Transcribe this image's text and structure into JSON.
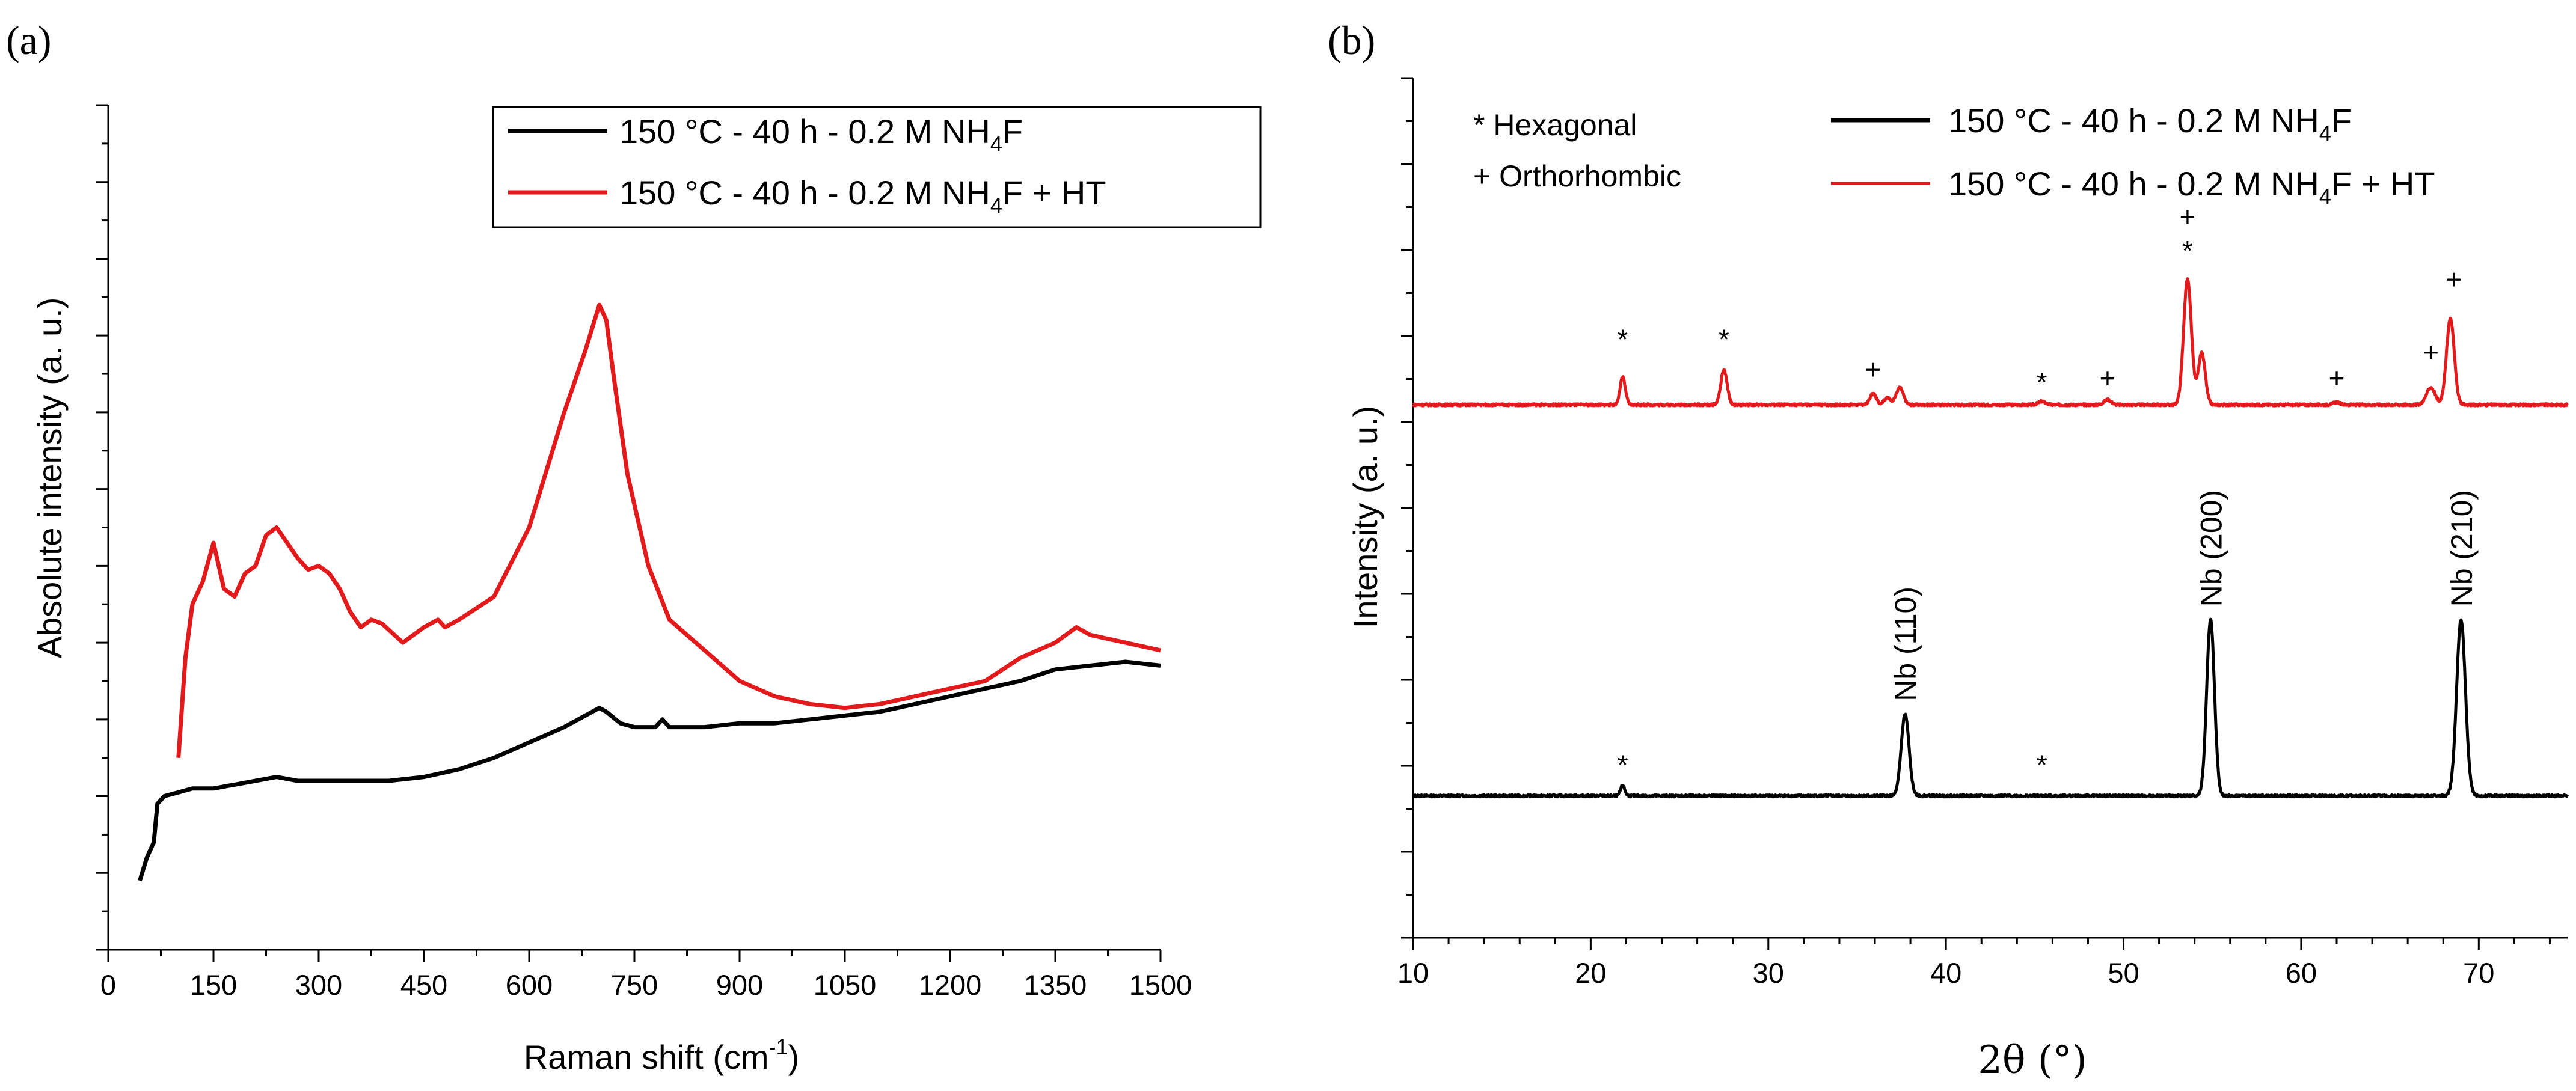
{
  "chart_data": [
    {
      "type": "line",
      "panel": "(a)",
      "xlabel": "Raman shift (cm",
      "xlabel_sup": "-1",
      "xlabel_tail": ")",
      "ylabel": "Absolute intensity (a. u.)",
      "xlim": [
        0,
        1500
      ],
      "ylim": [
        0,
        110
      ],
      "xticks": [
        0,
        150,
        300,
        450,
        600,
        750,
        900,
        1050,
        1200,
        1350,
        1500
      ],
      "yticks_unlabeled": true,
      "legend": [
        {
          "name_pre": "150 °C - 40 h - 0.2 M NH",
          "name_sub": "4",
          "name_post": "F",
          "color": "#000000"
        },
        {
          "name_pre": "150 °C - 40 h - 0.2 M NH",
          "name_sub": "4",
          "name_post": "F + HT",
          "color": "#e31a1c"
        }
      ],
      "series": [
        {
          "name": "150 °C - 40 h - 0.2 M NH4F",
          "color": "#000000",
          "x": [
            45,
            55,
            65,
            70,
            80,
            100,
            120,
            150,
            180,
            210,
            240,
            270,
            300,
            350,
            400,
            450,
            500,
            550,
            600,
            650,
            680,
            700,
            710,
            730,
            750,
            780,
            790,
            800,
            850,
            900,
            950,
            1000,
            1050,
            1100,
            1150,
            1200,
            1250,
            1300,
            1350,
            1400,
            1450,
            1500
          ],
          "y": [
            9,
            12,
            14,
            19,
            20,
            20.5,
            21,
            21,
            21.5,
            22,
            22.5,
            22,
            22,
            22,
            22,
            22.5,
            23.5,
            25,
            27,
            29,
            30.5,
            31.5,
            31,
            29.5,
            29,
            29,
            30,
            29,
            29,
            29.5,
            29.5,
            30,
            30.5,
            31,
            32,
            33,
            34,
            35,
            36.5,
            37,
            37.5,
            37
          ]
        },
        {
          "name": "150 °C - 40 h - 0.2 M NH4F + HT",
          "color": "#e31a1c",
          "x": [
            100,
            110,
            120,
            135,
            150,
            165,
            180,
            195,
            210,
            225,
            240,
            255,
            270,
            285,
            300,
            315,
            330,
            345,
            360,
            375,
            390,
            420,
            450,
            470,
            480,
            500,
            550,
            600,
            650,
            680,
            700,
            710,
            720,
            740,
            770,
            800,
            850,
            900,
            950,
            1000,
            1050,
            1100,
            1150,
            1200,
            1250,
            1300,
            1350,
            1380,
            1400,
            1450,
            1500
          ],
          "y": [
            25,
            38,
            45,
            48,
            53,
            47,
            46,
            49,
            50,
            54,
            55,
            53,
            51,
            49.5,
            50,
            49,
            47,
            44,
            42,
            43,
            42.5,
            40,
            42,
            43,
            42,
            43,
            46,
            55,
            70,
            78,
            84,
            82,
            75,
            62,
            50,
            43,
            39,
            35,
            33,
            32,
            31.5,
            32,
            33,
            34,
            35,
            38,
            40,
            42,
            41,
            40,
            39
          ]
        }
      ]
    },
    {
      "type": "line",
      "panel": "(b)",
      "xlabel": "2θ (°)",
      "ylabel": "Intensity (a. u.)",
      "xlim": [
        10,
        75
      ],
      "ylim": [
        0,
        100
      ],
      "xticks": [
        10,
        20,
        30,
        40,
        50,
        60,
        70
      ],
      "phases": [
        "* Hexagonal",
        "+ Orthorhombic"
      ],
      "legend": [
        {
          "name_pre": "150 °C - 40 h - 0.2 M NH",
          "name_sub": "4",
          "name_post": "F",
          "color": "#000000"
        },
        {
          "name_pre": "150 °C - 40 h - 0.2 M NH",
          "name_sub": "4",
          "name_post": "F + HT",
          "color": "#e31a1c"
        }
      ],
      "series": [
        {
          "name": "150 °C - 40 h - 0.2 M NH4F",
          "color": "#000000",
          "baseline": 16.5,
          "peaks": [
            [
              21.8,
              1.2,
              0.12
            ],
            [
              37.7,
              9.5,
              0.22
            ],
            [
              54.9,
              20.5,
              0.22
            ],
            [
              69.0,
              20.5,
              0.25
            ]
          ]
        },
        {
          "name": "150 °C - 40 h - 0.2 M NH4F + HT",
          "color": "#e31a1c",
          "baseline": 62,
          "peaks": [
            [
              21.8,
              3.2,
              0.15
            ],
            [
              27.5,
              4.0,
              0.18
            ],
            [
              35.9,
              1.3,
              0.18
            ],
            [
              36.7,
              0.8,
              0.2
            ],
            [
              37.4,
              2.0,
              0.2
            ],
            [
              45.4,
              0.4,
              0.2
            ],
            [
              49.1,
              0.6,
              0.2
            ],
            [
              53.6,
              14.6,
              0.22
            ],
            [
              54.4,
              6.0,
              0.2
            ],
            [
              62.0,
              0.3,
              0.2
            ],
            [
              67.3,
              2.0,
              0.25
            ],
            [
              68.4,
              10.0,
              0.22
            ]
          ]
        }
      ],
      "annotations": [
        {
          "text": "Nb (110)",
          "x": 37.7,
          "y": 27.5,
          "rotate": -90
        },
        {
          "text": "Nb (200)",
          "x": 54.9,
          "y": 38.5,
          "rotate": -90
        },
        {
          "text": "Nb (210)",
          "x": 69.0,
          "y": 38.5,
          "rotate": -90
        },
        {
          "text": "*",
          "x": 21.8,
          "y": 19.0
        },
        {
          "text": "*",
          "x": 45.4,
          "y": 19.0
        },
        {
          "text": "*",
          "x": 21.8,
          "y": 68.5
        },
        {
          "text": "*",
          "x": 27.5,
          "y": 68.5
        },
        {
          "text": "+",
          "x": 35.9,
          "y": 65.0
        },
        {
          "text": "*",
          "x": 45.4,
          "y": 63.5
        },
        {
          "text": "+",
          "x": 49.1,
          "y": 64.0
        },
        {
          "text": "*",
          "x": 53.6,
          "y": 78.8
        },
        {
          "text": "+",
          "x": 53.6,
          "y": 82.8
        },
        {
          "text": "+",
          "x": 62.0,
          "y": 64.0
        },
        {
          "text": "+",
          "x": 67.3,
          "y": 67.0
        },
        {
          "text": "+",
          "x": 68.6,
          "y": 75.5
        }
      ]
    }
  ]
}
